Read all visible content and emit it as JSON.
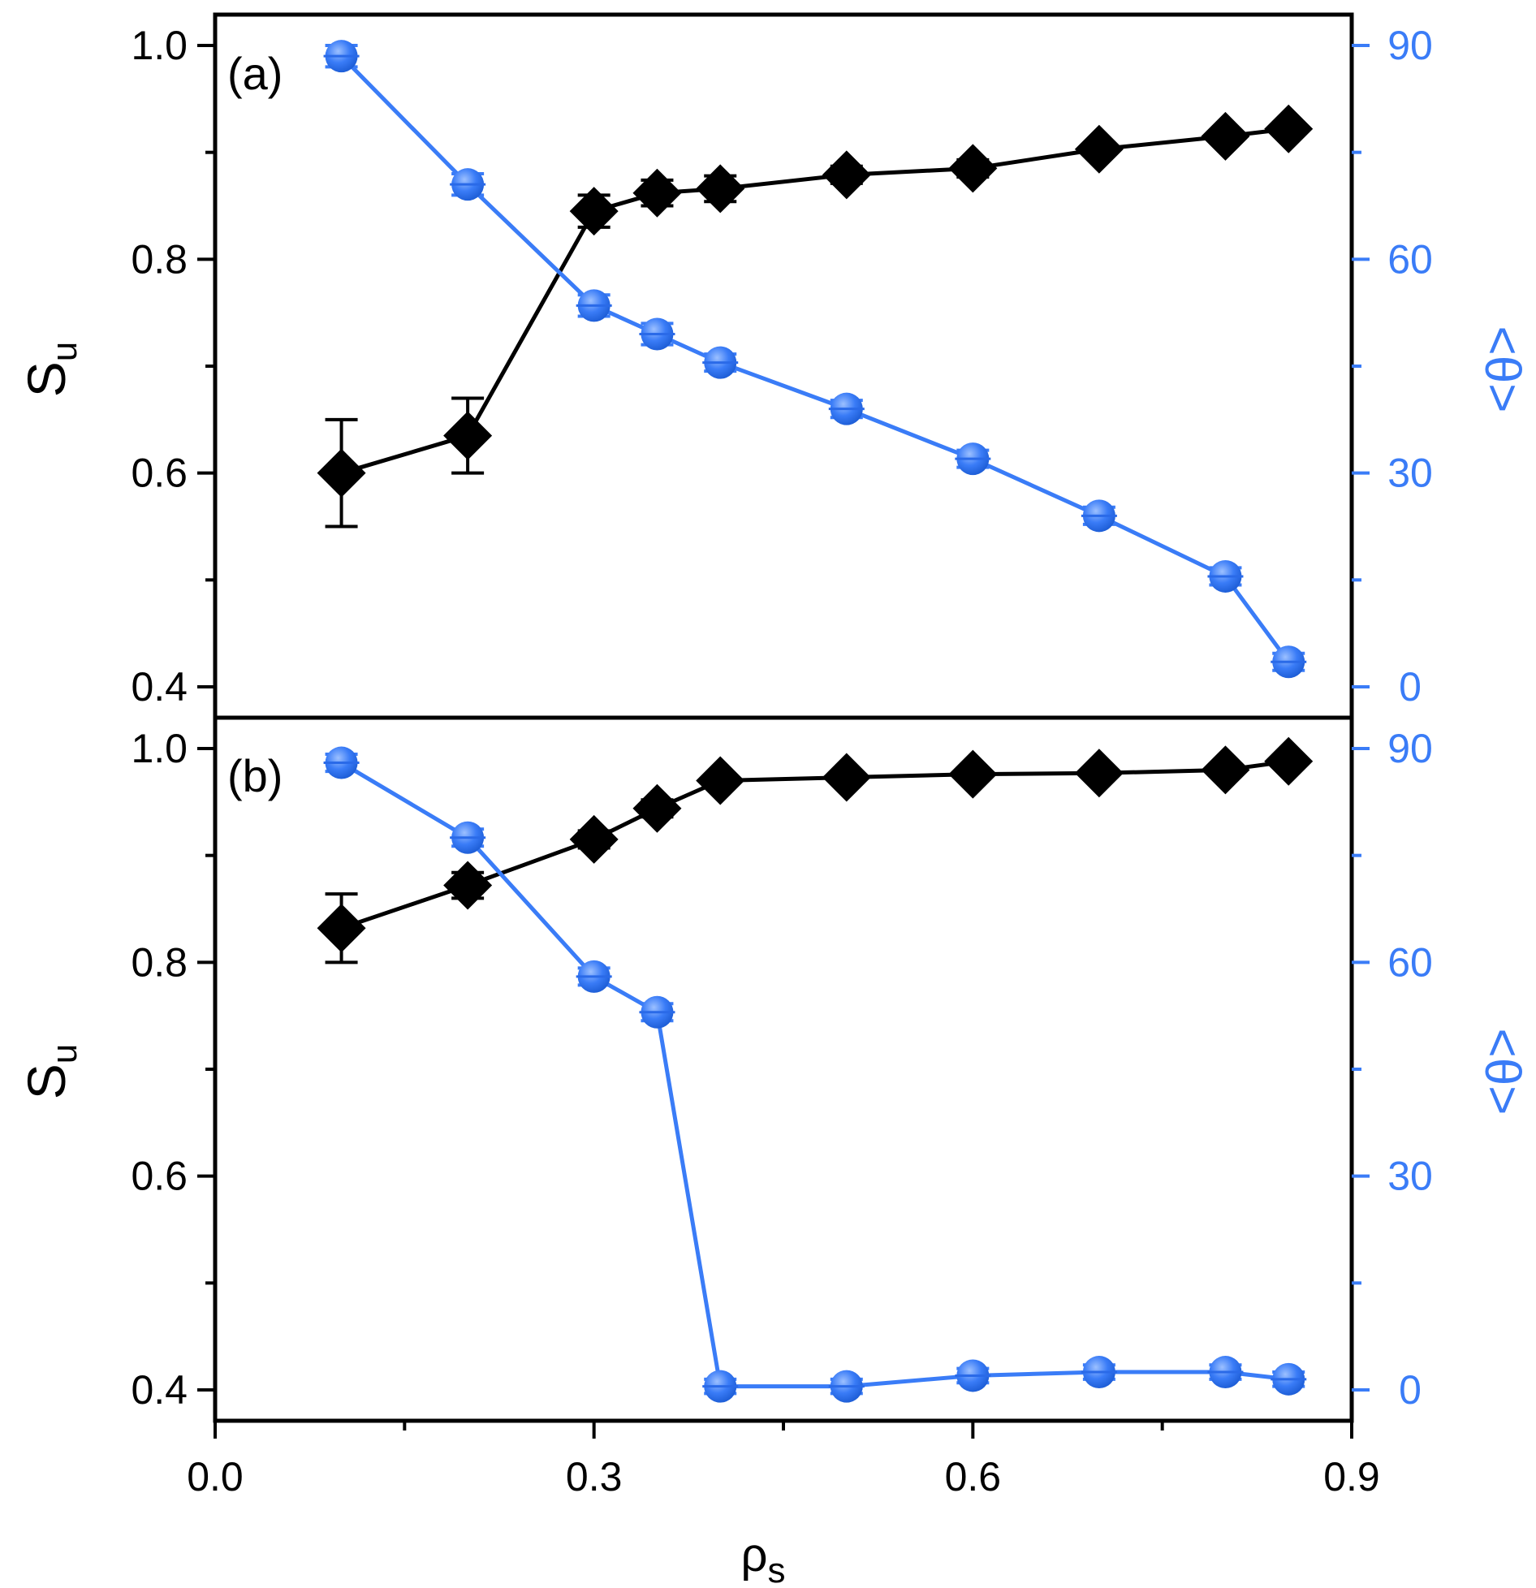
{
  "colors": {
    "black_series": "#000000",
    "blue_series": "#3a7cf7",
    "axis": "#000000"
  },
  "x_axis": {
    "label": "ρ",
    "label_subscript": "s",
    "range": [
      0.0,
      0.9
    ],
    "major_ticks": [
      0.0,
      0.3,
      0.6,
      0.9
    ],
    "tick_labels": [
      "0.0",
      "0.3",
      "0.6",
      "0.9"
    ],
    "minor_ticks": [
      0.15,
      0.45,
      0.75
    ]
  },
  "chart_data": [
    {
      "type": "line",
      "panel_label": "(a)",
      "x": [
        0.1,
        0.2,
        0.3,
        0.35,
        0.4,
        0.5,
        0.6,
        0.7,
        0.8,
        0.85
      ],
      "y_left": {
        "label": "S",
        "label_subscript": "u",
        "range": [
          0.4,
          1.0
        ],
        "tick_labels": [
          "0.4",
          "0.6",
          "0.8",
          "1.0"
        ],
        "major_ticks": [
          0.4,
          0.6,
          0.8,
          1.0
        ],
        "minor_ticks": [
          0.5,
          0.7,
          0.9
        ]
      },
      "y_right": {
        "label": "<θ>",
        "range": [
          0,
          90
        ],
        "tick_labels": [
          "0",
          "30",
          "60",
          "90"
        ],
        "major_ticks": [
          0,
          30,
          60,
          90
        ],
        "minor_ticks": [
          15,
          45,
          75
        ]
      },
      "series": [
        {
          "name": "S_u",
          "axis": "left",
          "marker": "diamond",
          "values": [
            0.6,
            0.635,
            0.845,
            0.862,
            0.866,
            0.879,
            0.885,
            0.903,
            0.915,
            0.922
          ],
          "errors": [
            0.05,
            0.035,
            0.015,
            0.012,
            0.012,
            0.008,
            0.008,
            0.006,
            0.006,
            0.006
          ]
        },
        {
          "name": "<θ>",
          "axis": "right",
          "marker": "circle",
          "values": [
            88.5,
            70.5,
            53.5,
            49.5,
            45.5,
            39.0,
            32.0,
            24.0,
            15.5,
            3.5
          ],
          "errors": [
            1.5,
            1.5,
            1.5,
            1.5,
            1.2,
            1.2,
            1.2,
            1.2,
            1.2,
            1.2
          ]
        }
      ]
    },
    {
      "type": "line",
      "panel_label": "(b)",
      "x": [
        0.1,
        0.2,
        0.3,
        0.35,
        0.4,
        0.5,
        0.6,
        0.7,
        0.8,
        0.85
      ],
      "y_left": {
        "label": "S",
        "label_subscript": "u",
        "range": [
          0.4,
          1.0
        ],
        "tick_labels": [
          "0.4",
          "0.6",
          "0.8",
          "1.0"
        ],
        "major_ticks": [
          0.4,
          0.6,
          0.8,
          1.0
        ],
        "minor_ticks": [
          0.5,
          0.7,
          0.9
        ]
      },
      "y_right": {
        "label": "<θ>",
        "range": [
          0,
          90
        ],
        "tick_labels": [
          "0",
          "30",
          "60",
          "90"
        ],
        "major_ticks": [
          0,
          30,
          60,
          90
        ],
        "minor_ticks": [
          15,
          45,
          75
        ]
      },
      "series": [
        {
          "name": "S_u",
          "axis": "left",
          "marker": "diamond",
          "values": [
            0.832,
            0.872,
            0.915,
            0.944,
            0.97,
            0.973,
            0.976,
            0.977,
            0.98,
            0.988
          ],
          "errors": [
            0.032,
            0.012,
            0.008,
            0.008,
            0.005,
            0.005,
            0.005,
            0.005,
            0.005,
            0.005
          ]
        },
        {
          "name": "<θ>",
          "axis": "right",
          "marker": "circle",
          "values": [
            88.0,
            77.5,
            58.0,
            53.0,
            0.5,
            0.5,
            2.0,
            2.5,
            2.5,
            1.5
          ],
          "errors": [
            1.2,
            1.2,
            1.2,
            1.2,
            1.0,
            1.0,
            1.0,
            1.0,
            1.0,
            1.0
          ]
        }
      ]
    }
  ]
}
